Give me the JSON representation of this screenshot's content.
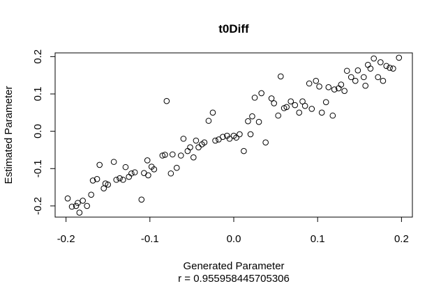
{
  "chart_data": {
    "type": "scatter",
    "title": "t0Diff",
    "xlabel": "Generated Parameter",
    "subtitle": "r = 0.955958445705306",
    "ylabel": "Estimated Parameter",
    "xlim": [
      -0.213,
      0.213
    ],
    "ylim": [
      -0.23,
      0.21
    ],
    "x_ticks": [
      -0.2,
      -0.1,
      0.0,
      0.1,
      0.2
    ],
    "x_tick_labels": [
      "-0.2",
      "-0.1",
      "0.0",
      "0.1",
      "0.2"
    ],
    "y_ticks": [
      -0.2,
      -0.1,
      0.0,
      0.1,
      0.2
    ],
    "y_tick_labels": [
      "-0.2",
      "-0.1",
      "0.0",
      "0.1",
      "0.2"
    ],
    "grid": false,
    "marker": "open-circle",
    "points": [
      [
        -0.198,
        -0.18
      ],
      [
        -0.193,
        -0.202
      ],
      [
        -0.188,
        -0.2
      ],
      [
        -0.186,
        -0.192
      ],
      [
        -0.184,
        -0.218
      ],
      [
        -0.18,
        -0.186
      ],
      [
        -0.175,
        -0.2
      ],
      [
        -0.17,
        -0.17
      ],
      [
        -0.168,
        -0.132
      ],
      [
        -0.163,
        -0.128
      ],
      [
        -0.16,
        -0.09
      ],
      [
        -0.155,
        -0.153
      ],
      [
        -0.153,
        -0.14
      ],
      [
        -0.15,
        -0.143
      ],
      [
        -0.143,
        -0.082
      ],
      [
        -0.14,
        -0.13
      ],
      [
        -0.136,
        -0.126
      ],
      [
        -0.132,
        -0.13
      ],
      [
        -0.129,
        -0.096
      ],
      [
        -0.125,
        -0.122
      ],
      [
        -0.122,
        -0.113
      ],
      [
        -0.118,
        -0.11
      ],
      [
        -0.11,
        -0.183
      ],
      [
        -0.107,
        -0.112
      ],
      [
        -0.103,
        -0.078
      ],
      [
        -0.102,
        -0.118
      ],
      [
        -0.098,
        -0.095
      ],
      [
        -0.095,
        -0.102
      ],
      [
        -0.085,
        -0.065
      ],
      [
        -0.082,
        -0.063
      ],
      [
        -0.08,
        0.081
      ],
      [
        -0.075,
        -0.113
      ],
      [
        -0.073,
        -0.062
      ],
      [
        -0.068,
        -0.098
      ],
      [
        -0.063,
        -0.065
      ],
      [
        -0.06,
        -0.02
      ],
      [
        -0.055,
        -0.053
      ],
      [
        -0.052,
        -0.043
      ],
      [
        -0.048,
        -0.07
      ],
      [
        -0.045,
        -0.025
      ],
      [
        -0.042,
        -0.043
      ],
      [
        -0.038,
        -0.035
      ],
      [
        -0.035,
        -0.03
      ],
      [
        -0.03,
        0.028
      ],
      [
        -0.025,
        0.05
      ],
      [
        -0.022,
        -0.025
      ],
      [
        -0.018,
        -0.022
      ],
      [
        -0.013,
        -0.015
      ],
      [
        -0.008,
        -0.012
      ],
      [
        -0.005,
        -0.02
      ],
      [
        0.0,
        -0.012
      ],
      [
        0.003,
        -0.017
      ],
      [
        0.007,
        -0.008
      ],
      [
        0.012,
        -0.053
      ],
      [
        0.017,
        0.027
      ],
      [
        0.02,
        -0.008
      ],
      [
        0.022,
        0.04
      ],
      [
        0.025,
        0.09
      ],
      [
        0.03,
        0.025
      ],
      [
        0.033,
        0.102
      ],
      [
        0.038,
        -0.03
      ],
      [
        0.045,
        0.088
      ],
      [
        0.048,
        0.075
      ],
      [
        0.053,
        0.042
      ],
      [
        0.056,
        0.147
      ],
      [
        0.06,
        0.062
      ],
      [
        0.063,
        0.065
      ],
      [
        0.068,
        0.08
      ],
      [
        0.073,
        0.07
      ],
      [
        0.078,
        0.05
      ],
      [
        0.082,
        0.08
      ],
      [
        0.085,
        0.068
      ],
      [
        0.09,
        0.128
      ],
      [
        0.093,
        0.06
      ],
      [
        0.098,
        0.135
      ],
      [
        0.102,
        0.12
      ],
      [
        0.105,
        0.05
      ],
      [
        0.11,
        0.078
      ],
      [
        0.113,
        0.118
      ],
      [
        0.118,
        0.042
      ],
      [
        0.12,
        0.112
      ],
      [
        0.125,
        0.115
      ],
      [
        0.128,
        0.125
      ],
      [
        0.132,
        0.108
      ],
      [
        0.135,
        0.162
      ],
      [
        0.14,
        0.145
      ],
      [
        0.145,
        0.135
      ],
      [
        0.148,
        0.163
      ],
      [
        0.155,
        0.145
      ],
      [
        0.157,
        0.122
      ],
      [
        0.16,
        0.178
      ],
      [
        0.163,
        0.168
      ],
      [
        0.167,
        0.195
      ],
      [
        0.172,
        0.145
      ],
      [
        0.175,
        0.185
      ],
      [
        0.178,
        0.135
      ],
      [
        0.182,
        0.175
      ],
      [
        0.186,
        0.17
      ],
      [
        0.19,
        0.168
      ],
      [
        0.197,
        0.197
      ]
    ]
  }
}
